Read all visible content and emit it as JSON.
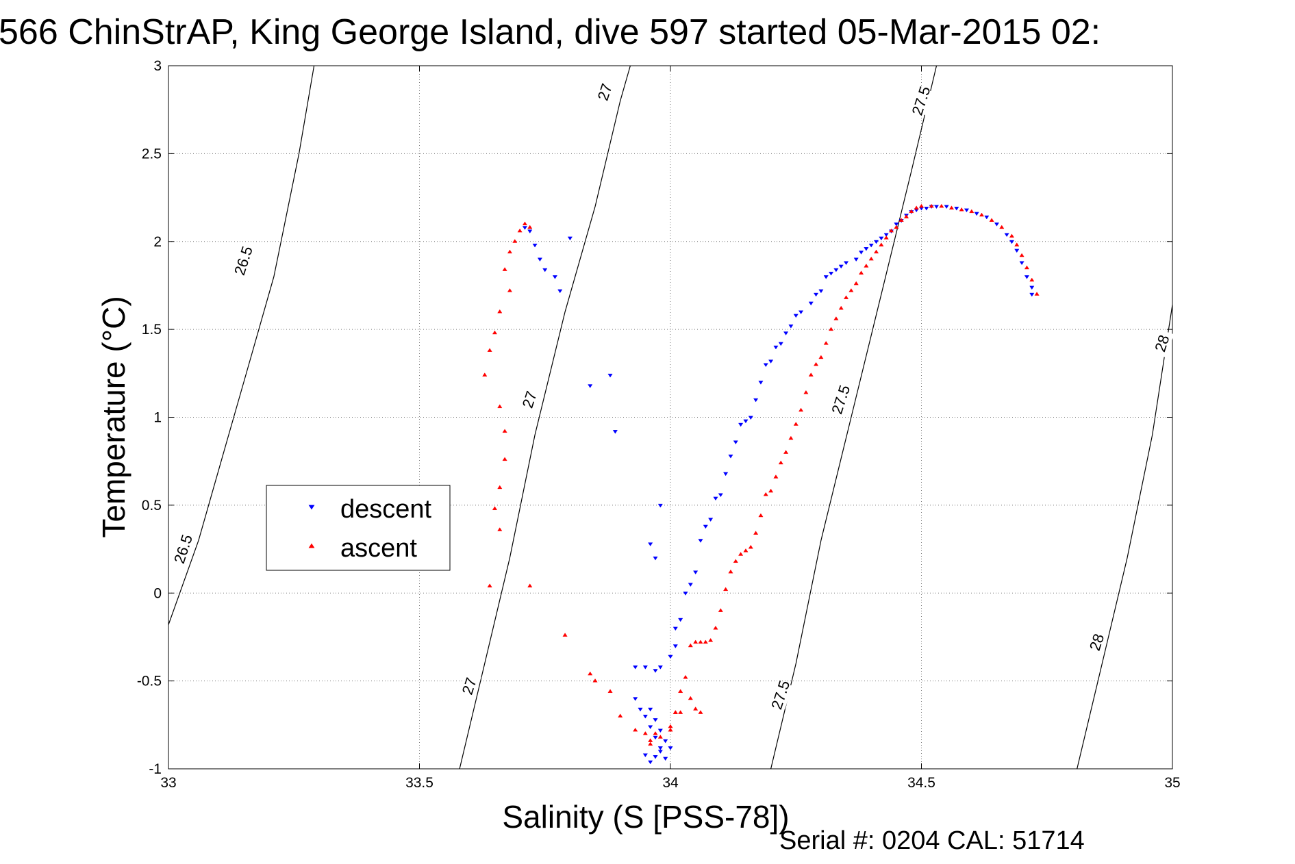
{
  "chart_data": {
    "type": "scatter",
    "title": "566 ChinStrAP, King George Island, dive 597 started 05-Mar-2015 02:",
    "xlabel": "Salinity (S [PSS-78])",
    "ylabel": "Temperature (°C)",
    "footer": "Serial #: 0204  CAL: 51714",
    "xlim": [
      33,
      35
    ],
    "ylim": [
      -1,
      3
    ],
    "xticks": [
      33,
      33.5,
      34,
      34.5,
      35
    ],
    "yticks": [
      -1,
      -0.5,
      0,
      0.5,
      1,
      1.5,
      2,
      2.5,
      3
    ],
    "xtick_labels": [
      "33",
      "33.5",
      "34",
      "34.5",
      "35"
    ],
    "ytick_labels": [
      "-1",
      "-0.5",
      "0",
      "0.5",
      "1",
      "1.5",
      "2",
      "2.5",
      "3"
    ],
    "grid": true,
    "grid_style": "dotted",
    "legend_position": "middle-left",
    "legend": [
      {
        "label": "descent",
        "marker": "down-triangle",
        "color": "#0000ff"
      },
      {
        "label": "ascent",
        "marker": "up-triangle",
        "color": "#ff0000"
      }
    ],
    "density_contours": [
      {
        "label": "26.5",
        "points": [
          [
            33.0,
            -0.18
          ],
          [
            33.06,
            0.3
          ],
          [
            33.11,
            0.8
          ],
          [
            33.16,
            1.3
          ],
          [
            33.21,
            1.8
          ],
          [
            33.26,
            2.5
          ],
          [
            33.29,
            3.0
          ]
        ]
      },
      {
        "label": "27",
        "points": [
          [
            33.58,
            -1.0
          ],
          [
            33.63,
            -0.4
          ],
          [
            33.68,
            0.2
          ],
          [
            33.73,
            0.9
          ],
          [
            33.79,
            1.6
          ],
          [
            33.85,
            2.2
          ],
          [
            33.9,
            2.8
          ],
          [
            33.92,
            3.0
          ]
        ]
      },
      {
        "label": "27.5",
        "points": [
          [
            34.2,
            -1.0
          ],
          [
            34.25,
            -0.4
          ],
          [
            34.3,
            0.3
          ],
          [
            34.36,
            1.0
          ],
          [
            34.42,
            1.7
          ],
          [
            34.48,
            2.4
          ],
          [
            34.53,
            3.0
          ]
        ]
      },
      {
        "label": "28",
        "points": [
          [
            34.81,
            -1.0
          ],
          [
            34.86,
            -0.4
          ],
          [
            34.91,
            0.2
          ],
          [
            34.96,
            0.9
          ],
          [
            35.0,
            1.64
          ]
        ]
      }
    ],
    "contour_labels": [
      {
        "text": "26.5",
        "at": [
          33.15,
          1.89
        ]
      },
      {
        "text": "26.5",
        "at": [
          33.03,
          0.25
        ]
      },
      {
        "text": "27",
        "at": [
          33.87,
          2.85
        ]
      },
      {
        "text": "27",
        "at": [
          33.72,
          1.1
        ]
      },
      {
        "text": "27",
        "at": [
          33.6,
          -0.53
        ]
      },
      {
        "text": "27.5",
        "at": [
          34.5,
          2.8
        ]
      },
      {
        "text": "27.5",
        "at": [
          34.34,
          1.1
        ]
      },
      {
        "text": "27.5",
        "at": [
          34.22,
          -0.58
        ]
      },
      {
        "text": "28",
        "at": [
          34.98,
          1.42
        ]
      },
      {
        "text": "28",
        "at": [
          34.85,
          -0.28
        ]
      }
    ],
    "series": [
      {
        "name": "descent",
        "color": "#0000ff",
        "marker": "down-triangle",
        "x": [
          33.71,
          33.72,
          33.73,
          33.74,
          33.75,
          33.77,
          33.78,
          33.8,
          33.84,
          33.88,
          33.89,
          33.98,
          33.96,
          33.97,
          33.93,
          33.95,
          33.97,
          33.98,
          34.0,
          34.01,
          34.01,
          34.02,
          34.03,
          34.04,
          34.05,
          34.06,
          34.07,
          34.08,
          34.09,
          34.1,
          34.11,
          34.12,
          34.13,
          34.14,
          34.15,
          34.16,
          34.17,
          34.18,
          34.19,
          34.2,
          34.21,
          34.22,
          34.23,
          34.24,
          34.25,
          34.26,
          34.28,
          34.29,
          34.3,
          34.31,
          34.32,
          34.33,
          34.34,
          34.35,
          34.37,
          34.38,
          34.39,
          34.4,
          34.41,
          34.42,
          34.43,
          34.44,
          34.45,
          34.46,
          34.47,
          34.48,
          34.49,
          34.5,
          34.51,
          34.52,
          34.53,
          34.55,
          34.57,
          34.59,
          34.61,
          34.63,
          34.65,
          34.67,
          34.68,
          34.69,
          34.7,
          34.71,
          34.72,
          34.72,
          33.93,
          33.94,
          33.95,
          33.96,
          33.97,
          33.98,
          33.99,
          34.0,
          33.96,
          33.97,
          33.98,
          33.99,
          33.95,
          33.96,
          33.97,
          33.98
        ],
        "y": [
          2.08,
          2.06,
          1.98,
          1.9,
          1.84,
          1.8,
          1.72,
          2.02,
          1.18,
          1.24,
          0.92,
          0.5,
          0.28,
          0.2,
          -0.42,
          -0.42,
          -0.44,
          -0.42,
          -0.36,
          -0.3,
          -0.2,
          -0.15,
          0.0,
          0.05,
          0.12,
          0.3,
          0.38,
          0.42,
          0.54,
          0.56,
          0.68,
          0.78,
          0.86,
          0.96,
          0.98,
          1.0,
          1.1,
          1.2,
          1.3,
          1.32,
          1.4,
          1.42,
          1.48,
          1.52,
          1.58,
          1.6,
          1.65,
          1.7,
          1.72,
          1.8,
          1.82,
          1.84,
          1.86,
          1.88,
          1.9,
          1.94,
          1.96,
          1.98,
          2.0,
          2.02,
          2.04,
          2.06,
          2.1,
          2.12,
          2.15,
          2.17,
          2.18,
          2.19,
          2.19,
          2.2,
          2.2,
          2.2,
          2.19,
          2.18,
          2.16,
          2.14,
          2.1,
          2.04,
          2.0,
          1.95,
          1.88,
          1.8,
          1.74,
          1.7,
          -0.6,
          -0.66,
          -0.7,
          -0.76,
          -0.82,
          -0.9,
          -0.94,
          -0.88,
          -0.66,
          -0.72,
          -0.78,
          -0.84,
          -0.92,
          -0.96,
          -0.93,
          -0.88
        ]
      },
      {
        "name": "ascent",
        "color": "#ff0000",
        "marker": "up-triangle",
        "x": [
          33.71,
          33.72,
          33.7,
          33.69,
          33.68,
          33.67,
          33.68,
          33.66,
          33.65,
          33.64,
          33.63,
          33.66,
          33.67,
          33.67,
          33.66,
          33.65,
          33.66,
          33.64,
          33.72,
          33.79,
          33.84,
          33.85,
          33.88,
          33.9,
          33.93,
          33.95,
          33.96,
          33.98,
          34.0,
          34.01,
          34.02,
          34.03,
          34.04,
          34.05,
          34.06,
          34.07,
          34.08,
          34.09,
          34.1,
          34.11,
          34.12,
          34.13,
          34.14,
          34.15,
          34.16,
          34.17,
          34.18,
          34.19,
          34.2,
          34.21,
          34.22,
          34.23,
          34.24,
          34.25,
          34.26,
          34.27,
          34.28,
          34.29,
          34.3,
          34.31,
          34.32,
          34.33,
          34.34,
          34.35,
          34.36,
          34.37,
          34.38,
          34.39,
          34.4,
          34.41,
          34.42,
          34.43,
          34.44,
          34.45,
          34.46,
          34.47,
          34.48,
          34.49,
          34.5,
          34.52,
          34.54,
          34.56,
          34.58,
          34.6,
          34.62,
          34.64,
          34.66,
          34.68,
          34.69,
          34.7,
          34.71,
          34.72,
          34.73,
          34.04,
          34.05,
          34.06,
          34.01,
          34.02,
          34.0,
          33.97,
          33.96
        ],
        "y": [
          2.1,
          2.08,
          2.06,
          2.0,
          1.94,
          1.84,
          1.72,
          1.6,
          1.48,
          1.38,
          1.24,
          1.06,
          0.92,
          0.76,
          0.6,
          0.48,
          0.36,
          0.04,
          0.04,
          -0.24,
          -0.46,
          -0.5,
          -0.56,
          -0.7,
          -0.78,
          -0.8,
          -0.84,
          -0.82,
          -0.78,
          -0.68,
          -0.56,
          -0.48,
          -0.3,
          -0.28,
          -0.28,
          -0.28,
          -0.27,
          -0.2,
          -0.1,
          0.02,
          0.12,
          0.18,
          0.22,
          0.24,
          0.26,
          0.34,
          0.44,
          0.56,
          0.58,
          0.66,
          0.74,
          0.8,
          0.88,
          0.96,
          1.04,
          1.14,
          1.24,
          1.3,
          1.34,
          1.42,
          1.5,
          1.56,
          1.62,
          1.68,
          1.72,
          1.76,
          1.82,
          1.86,
          1.9,
          1.94,
          1.98,
          2.02,
          2.06,
          2.08,
          2.12,
          2.14,
          2.17,
          2.19,
          2.2,
          2.2,
          2.2,
          2.19,
          2.18,
          2.17,
          2.15,
          2.12,
          2.08,
          2.03,
          1.98,
          1.92,
          1.85,
          1.78,
          1.7,
          -0.6,
          -0.66,
          -0.68,
          -0.68,
          -0.68,
          -0.76,
          -0.8,
          -0.86
        ]
      }
    ]
  }
}
